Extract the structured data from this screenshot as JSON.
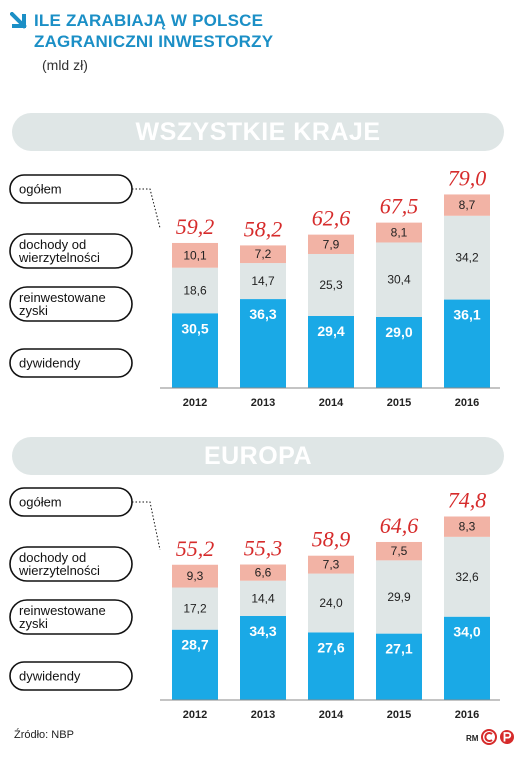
{
  "header": {
    "title_line1": "ILE ZARABIAJĄ W POLSCE",
    "title_line2": "ZAGRANICZNI INWESTORZY",
    "unit": "(mld zł)"
  },
  "legend_labels": {
    "total": "ogółem",
    "debt_line1": "dochody od",
    "debt_line2": "wierzytelności",
    "reinvested_line1": "reinwestowane",
    "reinvested_line2": "zyski",
    "dividends": "dywidendy"
  },
  "footer": {
    "source": "Źródło: NBP",
    "author": "RM"
  },
  "colors": {
    "dividends": "#1aa9e6",
    "reinvested": "#dfe6e6",
    "debt": "#f2b3a5",
    "total_text": "#d62b2b",
    "title": "#1b8fc6"
  },
  "chart_data": [
    {
      "type": "bar",
      "stacked": true,
      "title": "WSZYSTKIE KRAJE",
      "categories": [
        "2012",
        "2013",
        "2014",
        "2015",
        "2016"
      ],
      "series": [
        {
          "name": "dywidendy",
          "values": [
            30.5,
            36.3,
            29.4,
            29.0,
            36.1
          ],
          "labels": [
            "30,5",
            "36,3",
            "29,4",
            "29,0",
            "36,1"
          ]
        },
        {
          "name": "reinwestowane zyski",
          "values": [
            18.6,
            14.7,
            25.3,
            30.4,
            34.2
          ],
          "labels": [
            "18,6",
            "14,7",
            "25,3",
            "30,4",
            "34,2"
          ]
        },
        {
          "name": "dochody od wierzytelności",
          "values": [
            10.1,
            7.2,
            7.9,
            8.1,
            8.7
          ],
          "labels": [
            "10,1",
            "7,2",
            "7,9",
            "8,1",
            "8,7"
          ]
        }
      ],
      "totals": [
        59.2,
        58.2,
        62.6,
        67.5,
        79.0
      ],
      "total_labels": [
        "59,2",
        "58,2",
        "62,6",
        "67,5",
        "79,0"
      ]
    },
    {
      "type": "bar",
      "stacked": true,
      "title": "EUROPA",
      "categories": [
        "2012",
        "2013",
        "2014",
        "2015",
        "2016"
      ],
      "series": [
        {
          "name": "dywidendy",
          "values": [
            28.7,
            34.3,
            27.6,
            27.1,
            34.0
          ],
          "labels": [
            "28,7",
            "34,3",
            "27,6",
            "27,1",
            "34,0"
          ]
        },
        {
          "name": "reinwestowane zyski",
          "values": [
            17.2,
            14.4,
            24.0,
            29.9,
            32.6
          ],
          "labels": [
            "17,2",
            "14,4",
            "24,0",
            "29,9",
            "32,6"
          ]
        },
        {
          "name": "dochody od wierzytelności",
          "values": [
            9.3,
            6.6,
            7.3,
            7.5,
            8.3
          ],
          "labels": [
            "9,3",
            "6,6",
            "7,3",
            "7,5",
            "8,3"
          ]
        }
      ],
      "totals": [
        55.2,
        55.3,
        58.9,
        64.6,
        74.8
      ],
      "total_labels": [
        "55,2",
        "55,3",
        "58,9",
        "64,6",
        "74,8"
      ]
    }
  ]
}
